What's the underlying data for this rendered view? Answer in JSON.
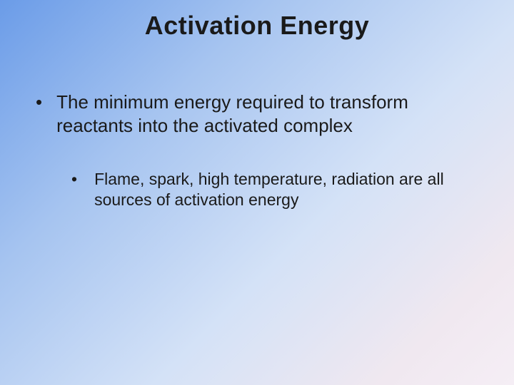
{
  "slide": {
    "title": "Activation Energy",
    "bullets": {
      "main": {
        "marker": "•",
        "text": "The minimum energy required to transform reactants into the activated complex"
      },
      "sub": {
        "marker": "•",
        "text": "Flame, spark, high temperature, radiation are all sources of activation energy"
      }
    },
    "style": {
      "background_gradient_start": "#6b9ce8",
      "background_gradient_mid1": "#a6c4f0",
      "background_gradient_mid2": "#d4e2f7",
      "background_gradient_end": "#f5eef5",
      "title_fontsize": 36,
      "title_color": "#1a1a1a",
      "title_fontweight": "bold",
      "main_bullet_fontsize": 26,
      "sub_bullet_fontsize": 23,
      "text_color": "#1a1a1a",
      "font_family": "Arial",
      "slide_width": 720,
      "slide_height": 540
    }
  }
}
